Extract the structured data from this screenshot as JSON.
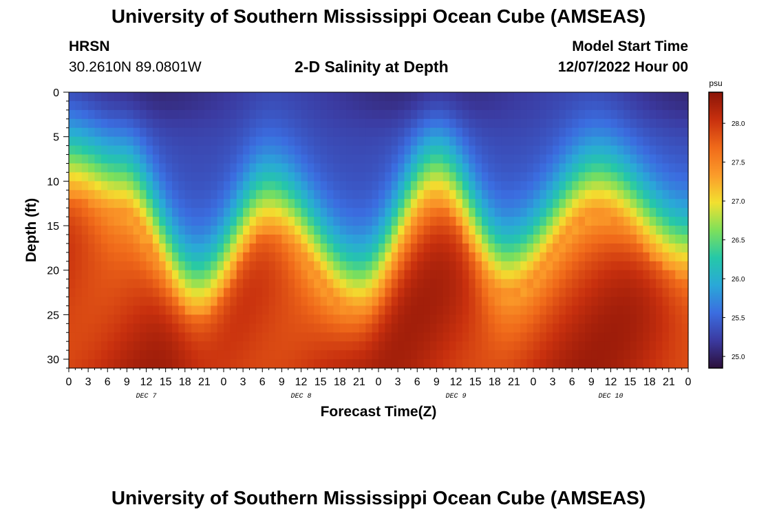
{
  "header": {
    "title": "University of Southern Mississippi Ocean Cube (AMSEAS)",
    "station": "HRSN",
    "coords": "30.2610N  89.0801W",
    "subtitle": "2-D Salinity at Depth",
    "start_label": "Model Start Time",
    "start_time": "12/07/2022 Hour 00"
  },
  "footer": {
    "title_repeat": "University of Southern Mississippi Ocean Cube (AMSEAS)"
  },
  "colors": {
    "stops": [
      "#2b0f3a",
      "#3b3aa0",
      "#3b6de0",
      "#2aa8d8",
      "#25c8a8",
      "#7ee05a",
      "#f2e030",
      "#fb9b2a",
      "#f06a1a",
      "#c8300e",
      "#8a1408"
    ]
  },
  "chart_data": {
    "type": "heatmap",
    "title": "2-D Salinity at Depth",
    "xlabel": "Forecast Time(Z)",
    "ylabel": "Depth (ft)",
    "x_tick_labels": [
      "0",
      "3",
      "6",
      "9",
      "12",
      "15",
      "18",
      "21",
      "0",
      "3",
      "6",
      "9",
      "12",
      "15",
      "18",
      "21",
      "0",
      "3",
      "6",
      "9",
      "12",
      "15",
      "18",
      "21",
      "0",
      "3",
      "6",
      "9",
      "12",
      "15",
      "18",
      "21",
      "0"
    ],
    "x_range_hours": [
      0,
      96
    ],
    "day_labels": [
      {
        "label": "DEC 7",
        "hour": 12
      },
      {
        "label": "DEC 8",
        "hour": 36
      },
      {
        "label": "DEC 9",
        "hour": 60
      },
      {
        "label": "DEC 10",
        "hour": 84
      }
    ],
    "y_ticks": [
      0,
      5,
      10,
      15,
      20,
      25,
      30
    ],
    "y_tick_labels": [
      "0",
      "5",
      "10",
      "15",
      "20",
      "25",
      "30"
    ],
    "y_range_ft": [
      0,
      31
    ],
    "colorbar": {
      "unit": "psu",
      "min": 24.85,
      "max": 28.4,
      "ticks": [
        25.0,
        25.5,
        26.0,
        26.5,
        27.0,
        27.5,
        28.0
      ],
      "tick_labels": [
        "25.0",
        "25.5",
        "26.0",
        "26.5",
        "27.0",
        "27.5",
        "28.0"
      ]
    },
    "halocline_depth_ft_by_hour": [
      {
        "hour": 0,
        "depth": 8
      },
      {
        "hour": 8,
        "depth": 10
      },
      {
        "hour": 20,
        "depth": 21.5
      },
      {
        "hour": 31,
        "depth": 12
      },
      {
        "hour": 45,
        "depth": 21
      },
      {
        "hour": 57,
        "depth": 9
      },
      {
        "hour": 68,
        "depth": 19
      },
      {
        "hour": 82,
        "depth": 10
      },
      {
        "hour": 96,
        "depth": 17
      }
    ],
    "surface_salinity_psu": 25.3,
    "bottom_salinity_psu": 28.1
  }
}
